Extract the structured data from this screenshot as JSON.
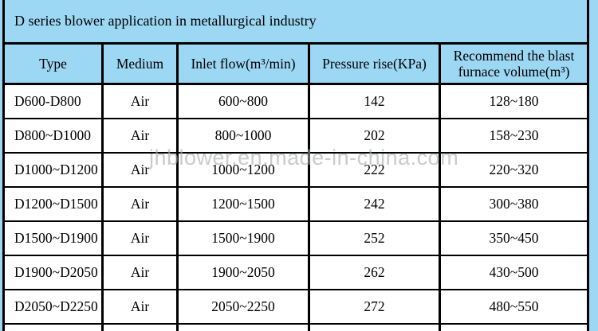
{
  "title": "D series blower application in metallurgical industry",
  "watermark": "jhblower.en.made-in-china.com",
  "colors": {
    "background": "#9cd7f4",
    "border": "#000000",
    "row_background": "#ffffff",
    "text": "#000000",
    "watermark": "#a9acae"
  },
  "table": {
    "headers": [
      "Type",
      "Medium",
      "Inlet flow(m³/min)",
      "Pressure rise(KPa)",
      "Recommend the blast furnace volume(m³)"
    ],
    "rows": [
      {
        "type": "D600-D800",
        "medium": "Air",
        "inlet_flow": "600~800",
        "pressure_rise": "142",
        "furnace_volume": "128~180"
      },
      {
        "type": "D800~D1000",
        "medium": "Air",
        "inlet_flow": "800~1000",
        "pressure_rise": "202",
        "furnace_volume": "158~230"
      },
      {
        "type": "D1000~D1200",
        "medium": "Air",
        "inlet_flow": "1000~1200",
        "pressure_rise": "222",
        "furnace_volume": "220~320"
      },
      {
        "type": "D1200~D1500",
        "medium": "Air",
        "inlet_flow": "1200~1500",
        "pressure_rise": "242",
        "furnace_volume": "300~380"
      },
      {
        "type": "D1500~D1900",
        "medium": "Air",
        "inlet_flow": "1500~1900",
        "pressure_rise": "252",
        "furnace_volume": "350~450"
      },
      {
        "type": "D1900~D2050",
        "medium": "Air",
        "inlet_flow": "1900~2050",
        "pressure_rise": "262",
        "furnace_volume": "430~500"
      },
      {
        "type": "D2050~D2250",
        "medium": "Air",
        "inlet_flow": "2050~2250",
        "pressure_rise": "272",
        "furnace_volume": "480~550"
      }
    ]
  }
}
